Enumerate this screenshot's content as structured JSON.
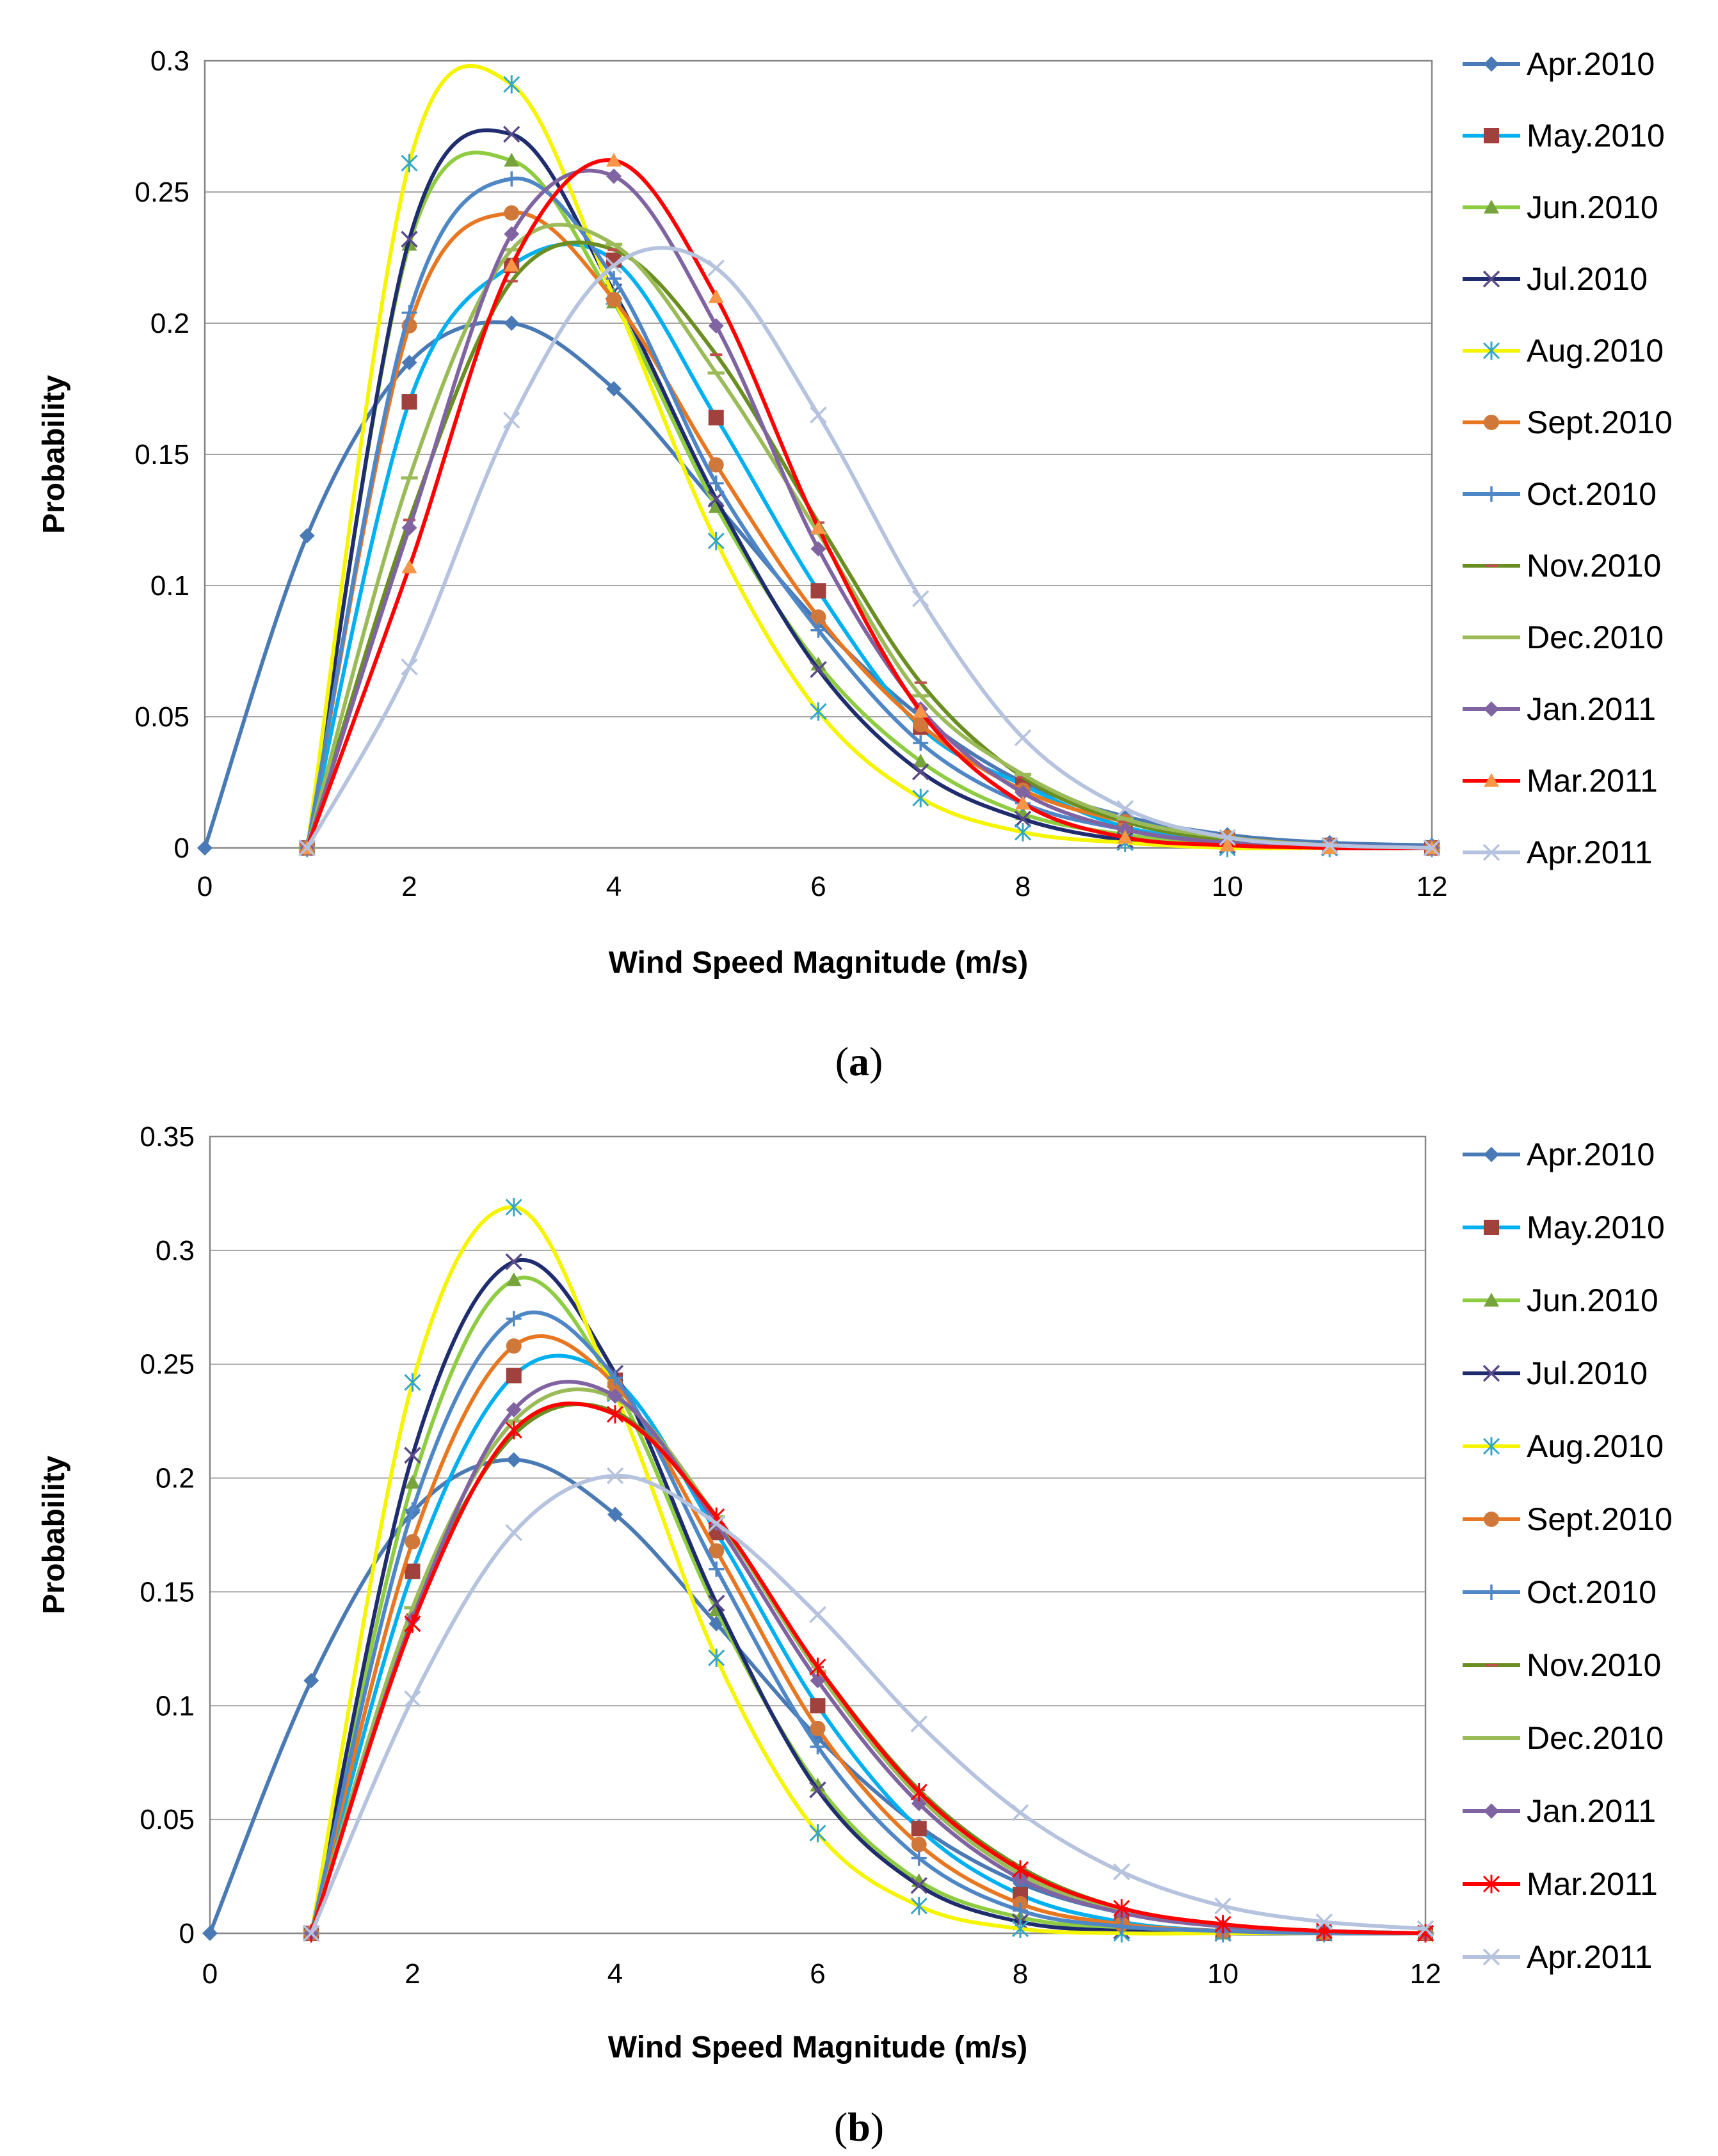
{
  "chart_data": [
    {
      "panel": "a",
      "caption_letter": "a",
      "type": "line",
      "title": "",
      "xlabel": "Wind Speed Magnitude (m/s)",
      "ylabel": "Probability",
      "xlim": [
        0,
        12
      ],
      "ylim": [
        0,
        0.3
      ],
      "xticks": [
        "0",
        "2",
        "4",
        "6",
        "8",
        "10",
        "12"
      ],
      "yticks": [
        "0",
        "0.05",
        "0.1",
        "0.15",
        "0.2",
        "0.25",
        "0.3"
      ],
      "grid": true,
      "legend": "right",
      "series": [
        {
          "name": "Apr.2010",
          "color": "#4a7ab5",
          "marker": "diamond",
          "x": [
            0,
            1,
            2,
            3,
            4,
            5,
            6,
            7,
            8,
            9,
            10,
            11,
            12
          ],
          "y": [
            0,
            0.119,
            0.185,
            0.2,
            0.175,
            0.131,
            0.086,
            0.05,
            0.025,
            0.012,
            0.005,
            0.002,
            0.001
          ]
        },
        {
          "name": "May.2010",
          "color": "#00b0f0",
          "markerColor": "#a0413d",
          "marker": "square",
          "x": [
            1,
            2,
            3,
            4,
            5,
            6,
            7,
            8,
            9,
            10,
            11,
            12
          ],
          "y": [
            0,
            0.17,
            0.222,
            0.224,
            0.164,
            0.098,
            0.046,
            0.024,
            0.008,
            0.003,
            0.001,
            0
          ]
        },
        {
          "name": "Jun.2010",
          "color": "#8ecc41",
          "markerColor": "#77a33c",
          "marker": "triangle",
          "x": [
            1,
            2,
            3,
            4,
            5,
            6,
            7,
            8,
            9,
            10,
            11,
            12
          ],
          "y": [
            0,
            0.23,
            0.262,
            0.208,
            0.13,
            0.07,
            0.033,
            0.013,
            0.005,
            0.001,
            0,
            0
          ]
        },
        {
          "name": "Jul.2010",
          "color": "#1f2d6e",
          "markerColor": "#5b4a8a",
          "marker": "x",
          "x": [
            1,
            2,
            3,
            4,
            5,
            6,
            7,
            8,
            9,
            10,
            11,
            12
          ],
          "y": [
            0,
            0.232,
            0.272,
            0.212,
            0.133,
            0.068,
            0.029,
            0.011,
            0.003,
            0.001,
            0,
            0
          ]
        },
        {
          "name": "Aug.2010",
          "color": "#f5f500",
          "markerColor": "#37a6c6",
          "marker": "star",
          "x": [
            1,
            2,
            3,
            4,
            5,
            6,
            7,
            8,
            9,
            10,
            11,
            12
          ],
          "y": [
            0,
            0.261,
            0.291,
            0.21,
            0.117,
            0.052,
            0.019,
            0.006,
            0.002,
            0,
            0,
            0
          ]
        },
        {
          "name": "Sept.2010",
          "color": "#e87722",
          "markerColor": "#d0783a",
          "marker": "circle",
          "x": [
            1,
            2,
            3,
            4,
            5,
            6,
            7,
            8,
            9,
            10,
            11,
            12
          ],
          "y": [
            0,
            0.199,
            0.242,
            0.209,
            0.146,
            0.088,
            0.047,
            0.022,
            0.01,
            0.004,
            0.001,
            0
          ]
        },
        {
          "name": "Oct.2010",
          "color": "#4f86c6",
          "marker": "plus",
          "x": [
            1,
            2,
            3,
            4,
            5,
            6,
            7,
            8,
            9,
            10,
            11,
            12
          ],
          "y": [
            0,
            0.204,
            0.255,
            0.217,
            0.139,
            0.083,
            0.04,
            0.017,
            0.007,
            0.002,
            0.001,
            0
          ]
        },
        {
          "name": "Nov.2010",
          "color": "#6b8e23",
          "markerColor": "#c0504d",
          "marker": "dash",
          "x": [
            1,
            2,
            3,
            4,
            5,
            6,
            7,
            8,
            9,
            10,
            11,
            12
          ],
          "y": [
            0,
            0.125,
            0.216,
            0.228,
            0.188,
            0.124,
            0.063,
            0.027,
            0.01,
            0.003,
            0.001,
            0
          ]
        },
        {
          "name": "Dec.2010",
          "color": "#9bbb59",
          "marker": "hline",
          "x": [
            1,
            2,
            3,
            4,
            5,
            6,
            7,
            8,
            9,
            10,
            11,
            12
          ],
          "y": [
            0,
            0.141,
            0.228,
            0.23,
            0.181,
            0.12,
            0.058,
            0.028,
            0.011,
            0.004,
            0.001,
            0
          ]
        },
        {
          "name": "Jan.2011",
          "color": "#8064a2",
          "marker": "diamond",
          "x": [
            1,
            2,
            3,
            4,
            5,
            6,
            7,
            8,
            9,
            10,
            11,
            12
          ],
          "y": [
            0,
            0.122,
            0.234,
            0.256,
            0.199,
            0.114,
            0.053,
            0.021,
            0.007,
            0.002,
            0.001,
            0
          ]
        },
        {
          "name": "Mar.2011",
          "color": "#ff0000",
          "markerColor": "#f79646",
          "marker": "triangle",
          "x": [
            1,
            2,
            3,
            4,
            5,
            6,
            7,
            8,
            9,
            10,
            11,
            12
          ],
          "y": [
            0,
            0.107,
            0.222,
            0.262,
            0.21,
            0.122,
            0.052,
            0.017,
            0.004,
            0.001,
            0,
            0
          ]
        },
        {
          "name": "Apr.2011",
          "color": "#b5c3de",
          "markerColor": "#b5c3de",
          "marker": "x",
          "x": [
            1,
            2,
            3,
            4,
            5,
            6,
            7,
            8,
            9,
            10,
            11,
            12
          ],
          "y": [
            0,
            0.069,
            0.163,
            0.222,
            0.221,
            0.165,
            0.095,
            0.042,
            0.015,
            0.004,
            0.001,
            0
          ]
        }
      ]
    },
    {
      "panel": "b",
      "caption_letter": "b",
      "type": "line",
      "title": "",
      "xlabel": "Wind Speed Magnitude (m/s)",
      "ylabel": "Probability",
      "xlim": [
        0,
        12
      ],
      "ylim": [
        0,
        0.35
      ],
      "xticks": [
        "0",
        "2",
        "4",
        "6",
        "8",
        "10",
        "12"
      ],
      "yticks": [
        "0",
        "0.05",
        "0.1",
        "0.15",
        "0.2",
        "0.25",
        "0.3",
        "0.35"
      ],
      "grid": true,
      "legend": "right",
      "series": [
        {
          "name": "Apr.2010",
          "color": "#4a7ab5",
          "marker": "diamond",
          "x": [
            0,
            1,
            2,
            3,
            4,
            5,
            6,
            7,
            8,
            9,
            10,
            11,
            12
          ],
          "y": [
            0,
            0.111,
            0.185,
            0.208,
            0.184,
            0.136,
            0.086,
            0.047,
            0.022,
            0.009,
            0.003,
            0.001,
            0
          ]
        },
        {
          "name": "May.2010",
          "color": "#00b0f0",
          "markerColor": "#a0413d",
          "marker": "square",
          "x": [
            1,
            2,
            3,
            4,
            5,
            6,
            7,
            8,
            9,
            10,
            11,
            12
          ],
          "y": [
            0,
            0.159,
            0.245,
            0.243,
            0.176,
            0.1,
            0.046,
            0.017,
            0.005,
            0.001,
            0,
            0
          ]
        },
        {
          "name": "Jun.2010",
          "color": "#8ecc41",
          "markerColor": "#77a33c",
          "marker": "triangle",
          "x": [
            1,
            2,
            3,
            4,
            5,
            6,
            7,
            8,
            9,
            10,
            11,
            12
          ],
          "y": [
            0,
            0.198,
            0.287,
            0.24,
            0.142,
            0.065,
            0.023,
            0.007,
            0.002,
            0,
            0,
            0
          ]
        },
        {
          "name": "Jul.2010",
          "color": "#1f2d6e",
          "markerColor": "#5b4a8a",
          "marker": "x",
          "x": [
            1,
            2,
            3,
            4,
            5,
            6,
            7,
            8,
            9,
            10,
            11,
            12
          ],
          "y": [
            0,
            0.21,
            0.295,
            0.246,
            0.145,
            0.063,
            0.021,
            0.005,
            0.001,
            0,
            0,
            0
          ]
        },
        {
          "name": "Aug.2010",
          "color": "#f5f500",
          "markerColor": "#37a6c6",
          "marker": "star",
          "x": [
            1,
            2,
            3,
            4,
            5,
            6,
            7,
            8,
            9,
            10,
            11,
            12
          ],
          "y": [
            0,
            0.242,
            0.319,
            0.237,
            0.121,
            0.044,
            0.012,
            0.002,
            0,
            0,
            0,
            0
          ]
        },
        {
          "name": "Sept.2010",
          "color": "#e87722",
          "markerColor": "#d0783a",
          "marker": "circle",
          "x": [
            1,
            2,
            3,
            4,
            5,
            6,
            7,
            8,
            9,
            10,
            11,
            12
          ],
          "y": [
            0,
            0.172,
            0.258,
            0.241,
            0.168,
            0.09,
            0.039,
            0.013,
            0.004,
            0.001,
            0,
            0
          ]
        },
        {
          "name": "Oct.2010",
          "color": "#4f86c6",
          "marker": "plus",
          "x": [
            1,
            2,
            3,
            4,
            5,
            6,
            7,
            8,
            9,
            10,
            11,
            12
          ],
          "y": [
            0,
            0.186,
            0.27,
            0.244,
            0.16,
            0.082,
            0.033,
            0.01,
            0.003,
            0.001,
            0,
            0
          ]
        },
        {
          "name": "Nov.2010",
          "color": "#6b8e23",
          "markerColor": "#c0504d",
          "marker": "dash",
          "x": [
            1,
            2,
            3,
            4,
            5,
            6,
            7,
            8,
            9,
            10,
            11,
            12
          ],
          "y": [
            0,
            0.14,
            0.219,
            0.229,
            0.182,
            0.117,
            0.063,
            0.029,
            0.011,
            0.004,
            0.001,
            0
          ]
        },
        {
          "name": "Dec.2010",
          "color": "#9bbb59",
          "marker": "hline",
          "x": [
            1,
            2,
            3,
            4,
            5,
            6,
            7,
            8,
            9,
            10,
            11,
            12
          ],
          "y": [
            0,
            0.143,
            0.225,
            0.235,
            0.183,
            0.115,
            0.06,
            0.026,
            0.01,
            0.003,
            0.001,
            0
          ]
        },
        {
          "name": "Jan.2011",
          "color": "#8064a2",
          "marker": "diamond",
          "x": [
            1,
            2,
            3,
            4,
            5,
            6,
            7,
            8,
            9,
            10,
            11,
            12
          ],
          "y": [
            0,
            0.138,
            0.23,
            0.236,
            0.18,
            0.111,
            0.057,
            0.024,
            0.009,
            0.003,
            0.001,
            0
          ]
        },
        {
          "name": "Mar.2011",
          "color": "#ff0000",
          "markerColor": "#ff0000",
          "marker": "star",
          "x": [
            1,
            2,
            3,
            4,
            5,
            6,
            7,
            8,
            9,
            10,
            11,
            12
          ],
          "y": [
            0,
            0.136,
            0.221,
            0.228,
            0.183,
            0.117,
            0.062,
            0.028,
            0.011,
            0.004,
            0.001,
            0
          ]
        },
        {
          "name": "Apr.2011",
          "color": "#b5c3de",
          "markerColor": "#b5c3de",
          "marker": "x",
          "x": [
            1,
            2,
            3,
            4,
            5,
            6,
            7,
            8,
            9,
            10,
            11,
            12
          ],
          "y": [
            0,
            0.103,
            0.176,
            0.201,
            0.18,
            0.14,
            0.092,
            0.053,
            0.027,
            0.012,
            0.005,
            0.002
          ]
        }
      ]
    }
  ]
}
